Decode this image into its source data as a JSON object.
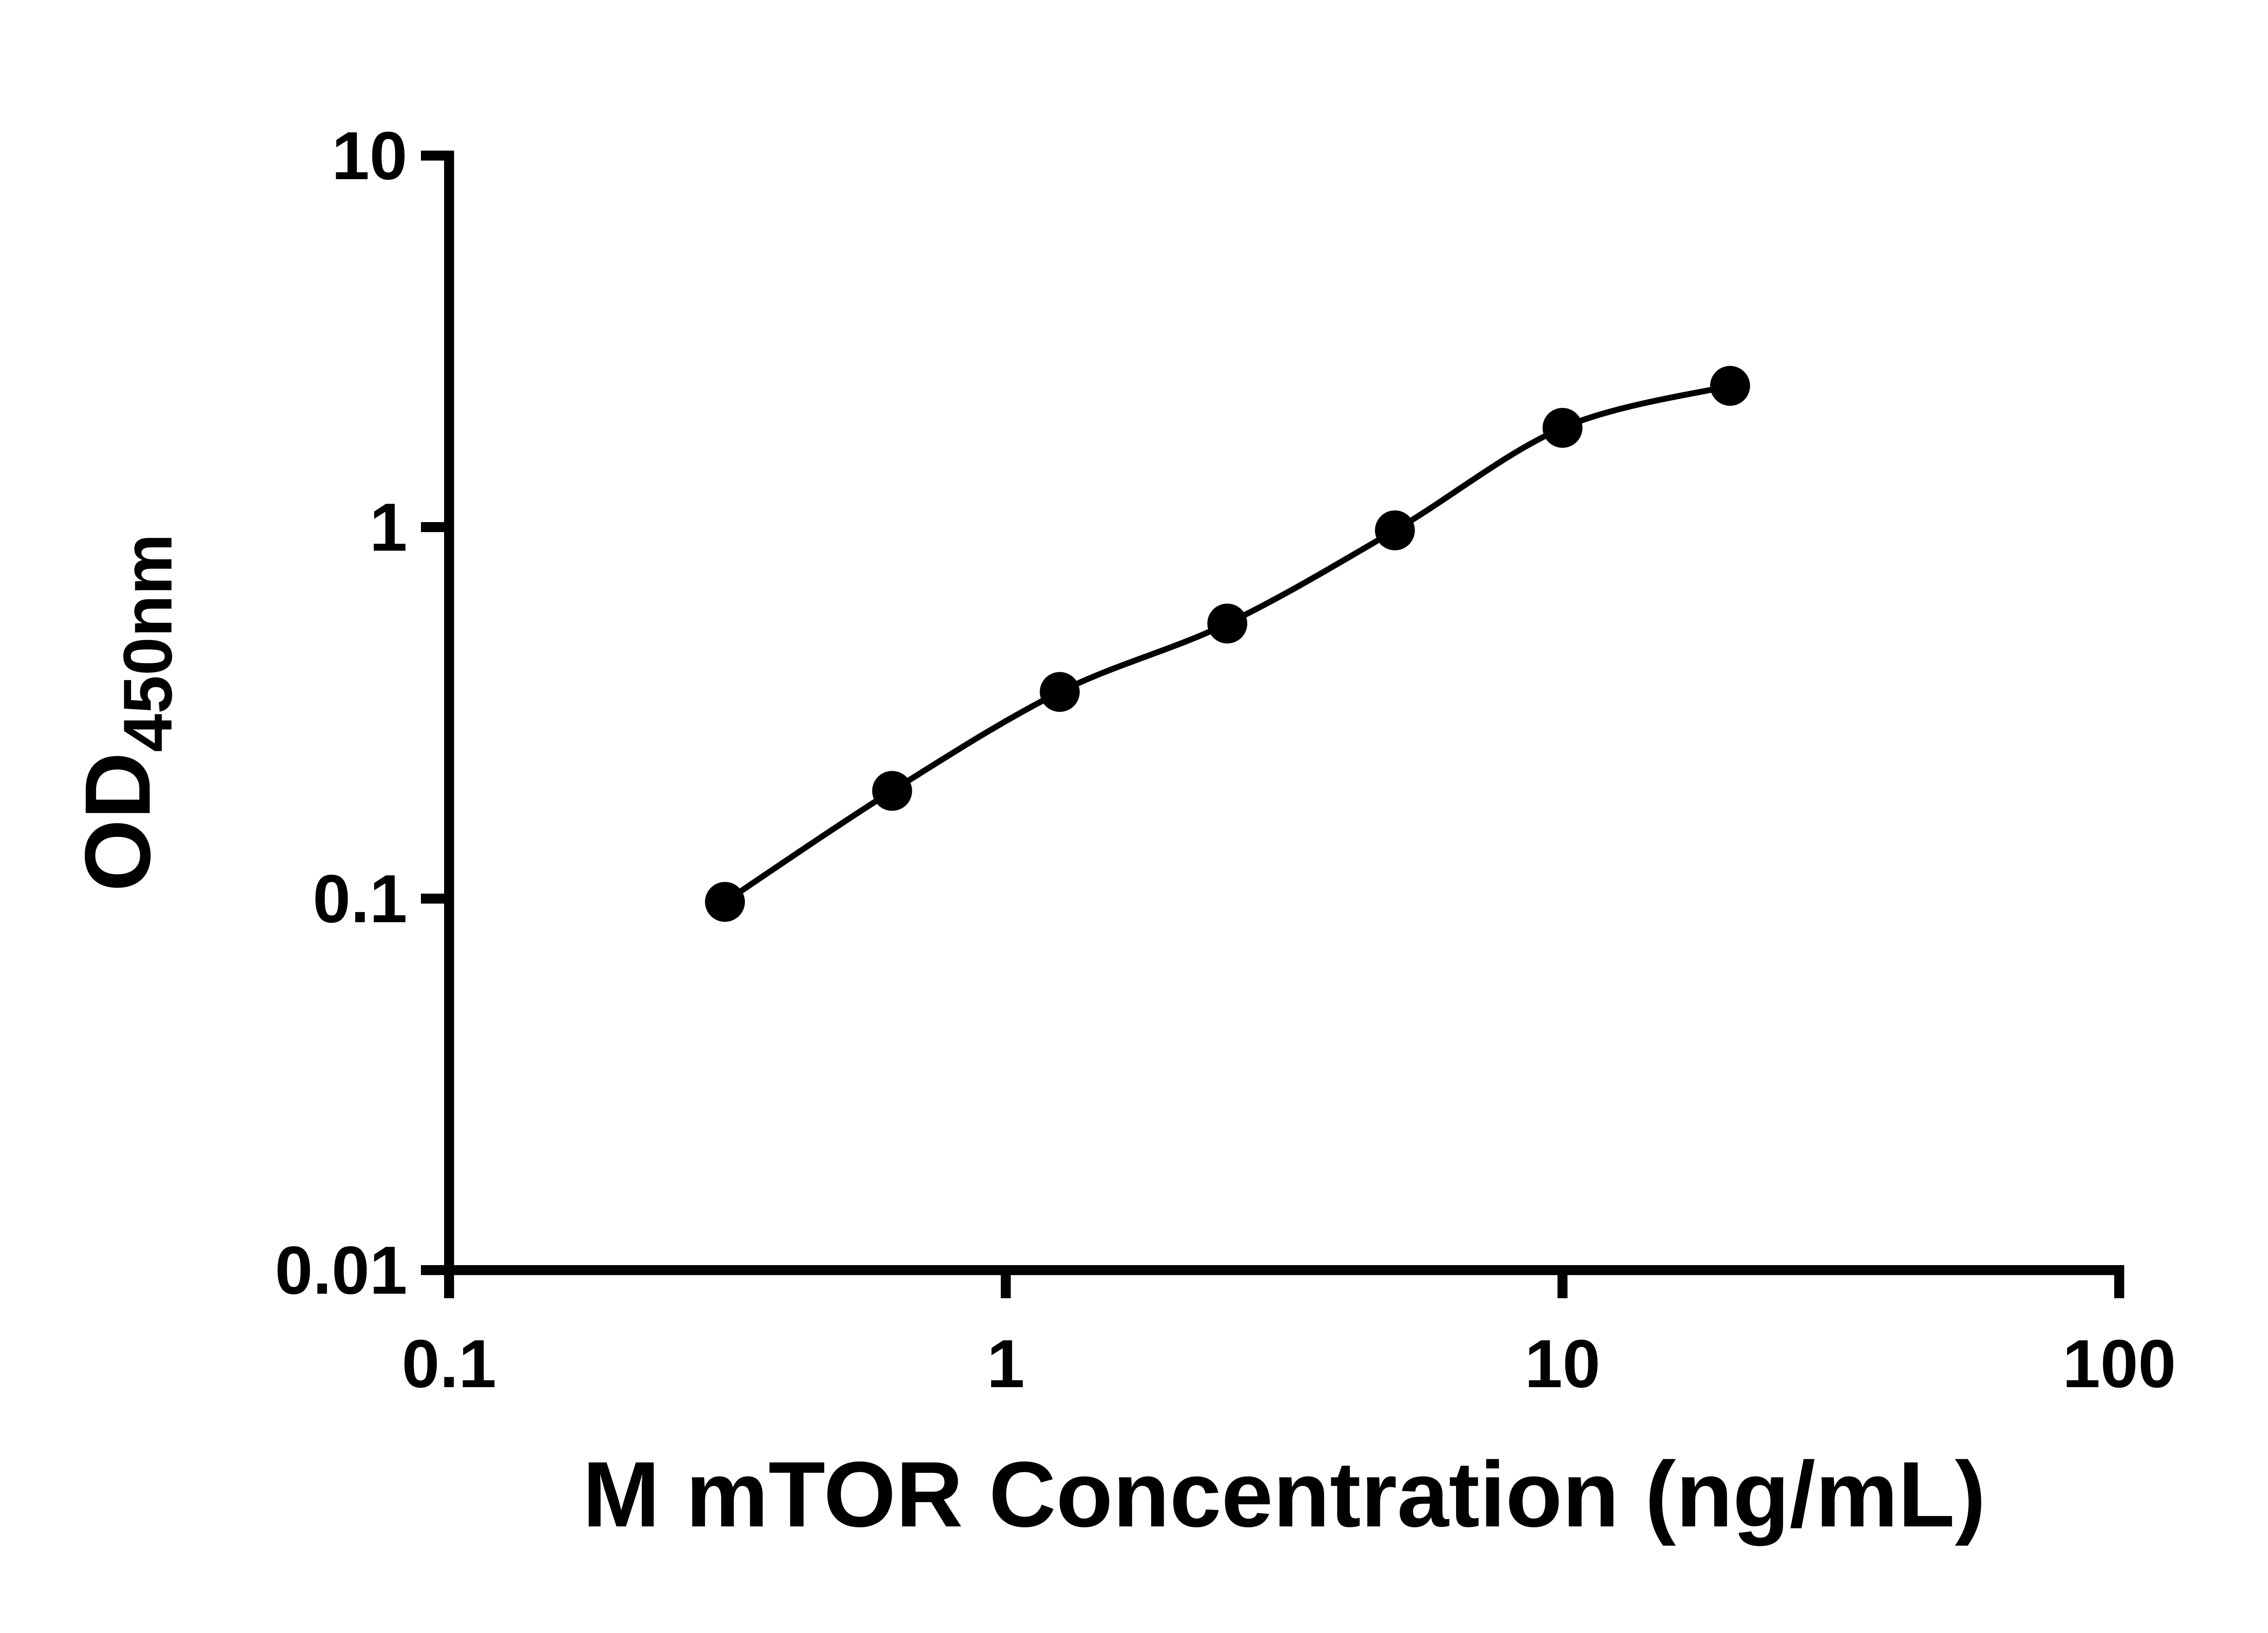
{
  "page": {
    "background": "#ffffff"
  },
  "chart_data": {
    "type": "scatter",
    "title": "",
    "xlabel": "M mTOR Concentration (ng/mL)",
    "ylabel_main": "OD",
    "ylabel_sub": "450nm",
    "x_scale": "log10",
    "y_scale": "log10",
    "xlim": [
      0.1,
      100
    ],
    "ylim": [
      0.01,
      10
    ],
    "x_tick_values": [
      0.1,
      1,
      10,
      100
    ],
    "x_tick_labels": [
      "0.1",
      "1",
      "10",
      "100"
    ],
    "y_tick_values": [
      0.01,
      0.1,
      1,
      10
    ],
    "y_tick_labels": [
      "0.01",
      "0.1",
      "1",
      "10"
    ],
    "grid": false,
    "legend": false,
    "axis_color": "#000000",
    "line_color": "#000000",
    "marker_color": "#000000",
    "marker": "filled-circle",
    "has_fit_curve": true,
    "series": [
      {
        "x": [
          0.313,
          0.625,
          1.25,
          2.5,
          5,
          10,
          20
        ],
        "y": [
          0.098,
          0.195,
          0.36,
          0.55,
          0.98,
          1.85,
          2.4
        ]
      }
    ]
  }
}
